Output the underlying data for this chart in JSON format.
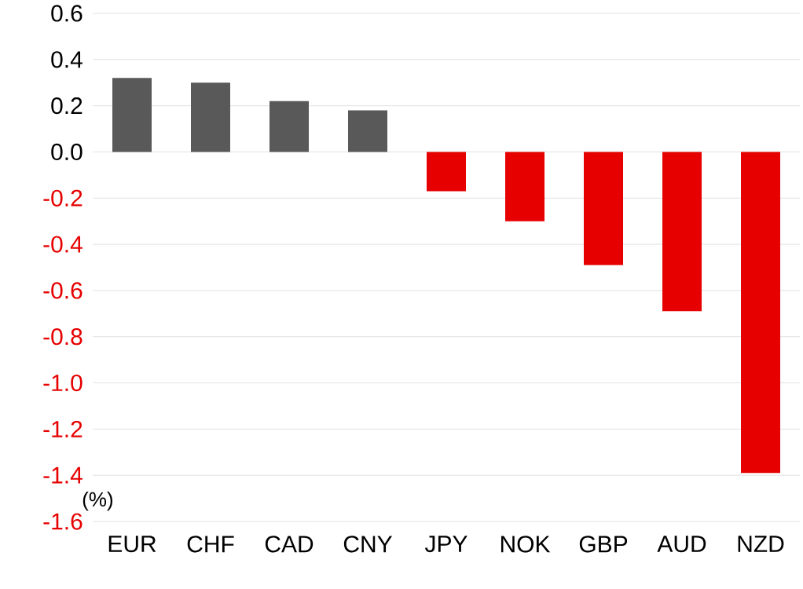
{
  "chart_data": {
    "type": "bar",
    "ylabel": "(%)",
    "categories": [
      "EUR",
      "CHF",
      "CAD",
      "CNY",
      "JPY",
      "NOK",
      "GBP",
      "AUD",
      "NZD"
    ],
    "values": [
      0.32,
      0.3,
      0.22,
      0.18,
      -0.17,
      -0.3,
      -0.49,
      -0.69,
      -1.39
    ],
    "colors": [
      "#595959",
      "#595959",
      "#595959",
      "#595959",
      "#e60000",
      "#e60000",
      "#e60000",
      "#e60000",
      "#e60000"
    ],
    "ylim": [
      -1.6,
      0.6
    ],
    "yticks": [
      {
        "value": -1.6,
        "label": "-1.6"
      },
      {
        "value": -1.4,
        "label": "-1.4"
      },
      {
        "value": -1.2,
        "label": "-1.2"
      },
      {
        "value": -1.0,
        "label": "-1.0"
      },
      {
        "value": -0.8,
        "label": "-0.8"
      },
      {
        "value": -0.6,
        "label": "-0.6"
      },
      {
        "value": -0.4,
        "label": "-0.4"
      },
      {
        "value": -0.2,
        "label": "-0.2"
      },
      {
        "value": 0,
        "label": "0.0"
      },
      {
        "value": 0.2,
        "label": "0.2"
      },
      {
        "value": 0.4,
        "label": "0.4"
      },
      {
        "value": 0.6,
        "label": "0.6"
      }
    ],
    "grid": "y"
  }
}
